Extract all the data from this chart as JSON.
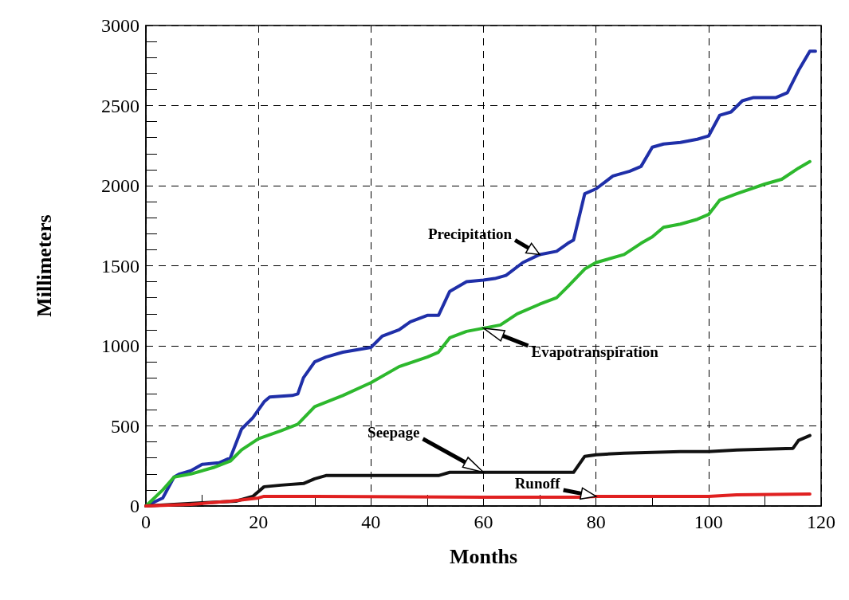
{
  "chart_data": {
    "type": "line",
    "xlabel": "Months",
    "ylabel": "Millimeters",
    "xlim": [
      0,
      120
    ],
    "xticks": [
      0,
      20,
      40,
      60,
      80,
      100,
      120
    ],
    "ylim": [
      0,
      3000
    ],
    "yticks": [
      0,
      500,
      1000,
      1500,
      2000,
      2500,
      3000
    ],
    "grid": true,
    "legend": false,
    "marker": "none",
    "line_style": "solid",
    "series": [
      {
        "name": "Precipitation",
        "color": "#1f2fa8",
        "x": [
          0,
          3,
          5,
          6,
          8,
          10,
          13,
          15,
          17,
          19,
          21,
          22,
          26,
          27,
          28,
          30,
          32,
          35,
          40,
          42,
          45,
          47,
          50,
          52,
          54,
          57,
          60,
          62,
          64,
          67,
          70,
          73,
          75,
          76,
          78,
          80,
          83,
          86,
          88,
          90,
          92,
          95,
          98,
          100,
          102,
          104,
          106,
          108,
          112,
          114,
          116,
          118,
          119
        ],
        "values": [
          0,
          50,
          180,
          200,
          220,
          260,
          270,
          300,
          480,
          550,
          650,
          680,
          690,
          700,
          800,
          900,
          930,
          960,
          990,
          1060,
          1100,
          1150,
          1190,
          1190,
          1340,
          1400,
          1410,
          1420,
          1440,
          1520,
          1570,
          1590,
          1640,
          1660,
          1950,
          1980,
          2060,
          2090,
          2120,
          2240,
          2260,
          2270,
          2290,
          2310,
          2440,
          2460,
          2530,
          2550,
          2550,
          2580,
          2720,
          2840,
          2840
        ]
      },
      {
        "name": "Evapotranspiration",
        "color": "#2db82d",
        "x": [
          0,
          3,
          5,
          8,
          12,
          15,
          17,
          20,
          24,
          27,
          30,
          35,
          40,
          45,
          50,
          52,
          54,
          57,
          60,
          63,
          66,
          70,
          73,
          75,
          78,
          80,
          85,
          88,
          90,
          92,
          95,
          98,
          100,
          102,
          105,
          110,
          113,
          116,
          118
        ],
        "values": [
          0,
          100,
          180,
          200,
          240,
          280,
          350,
          420,
          470,
          510,
          620,
          690,
          770,
          870,
          930,
          960,
          1050,
          1090,
          1110,
          1130,
          1200,
          1260,
          1300,
          1370,
          1480,
          1520,
          1570,
          1640,
          1680,
          1740,
          1760,
          1790,
          1820,
          1910,
          1950,
          2010,
          2040,
          2110,
          2150
        ]
      },
      {
        "name": "Seepage",
        "color": "#111111",
        "x": [
          0,
          5,
          10,
          16,
          19,
          21,
          24,
          28,
          30,
          32,
          40,
          52,
          54,
          60,
          76,
          78,
          80,
          85,
          95,
          100,
          105,
          115,
          116,
          118
        ],
        "values": [
          0,
          10,
          20,
          30,
          60,
          120,
          130,
          140,
          170,
          190,
          190,
          190,
          210,
          210,
          210,
          310,
          320,
          330,
          340,
          340,
          350,
          360,
          410,
          440
        ]
      },
      {
        "name": "Runoff",
        "color": "#e02020",
        "x": [
          0,
          8,
          15,
          20,
          21,
          30,
          60,
          77,
          80,
          100,
          105,
          118
        ],
        "values": [
          0,
          10,
          30,
          50,
          60,
          60,
          55,
          55,
          60,
          60,
          70,
          75
        ]
      }
    ]
  }
}
